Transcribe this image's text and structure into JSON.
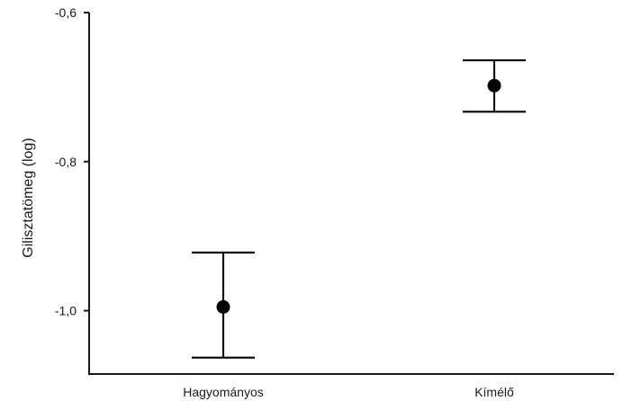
{
  "chart_data": {
    "type": "scatter",
    "title": "",
    "xlabel": "",
    "ylabel": "Gilisztatömeg (log)",
    "categories": [
      "Hagyományos",
      "Kímélő"
    ],
    "series": [
      {
        "values": [
          -0.995,
          -0.698
        ],
        "error_low": [
          -1.063,
          -0.733
        ],
        "error_high": [
          -0.922,
          -0.664
        ]
      }
    ],
    "ylim": [
      -1.085,
      -0.6
    ],
    "yticks": [
      -0.6,
      -0.8,
      -1.0
    ],
    "ytick_labels": [
      "-0,6",
      "-0,8",
      "-1,0"
    ],
    "grid": false,
    "legend": "none",
    "marker": "filled-circle",
    "color": "#000000"
  }
}
